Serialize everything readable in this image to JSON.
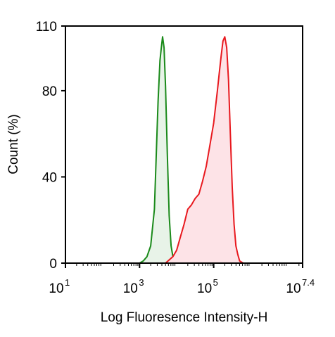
{
  "chart_data": {
    "type": "area",
    "xlabel": "Log Fluoresence Intensity-H",
    "ylabel": "Count  (%)",
    "x_scale": "log10",
    "xlim": [
      1,
      7.4
    ],
    "ylim": [
      0,
      110
    ],
    "x_ticks": [
      {
        "base": "10",
        "exp": "1",
        "value": 1
      },
      {
        "base": "10",
        "exp": "3",
        "value": 3
      },
      {
        "base": "10",
        "exp": "5",
        "value": 5
      },
      {
        "base": "10",
        "exp": "7.4",
        "value": 7.4
      }
    ],
    "y_ticks": [
      {
        "label": "0",
        "value": 0
      },
      {
        "label": "40",
        "value": 40
      },
      {
        "label": "80",
        "value": 80
      },
      {
        "label": "110",
        "value": 110
      }
    ],
    "grid": false,
    "series": [
      {
        "color": "#1a8a1a",
        "fill": "#e8f3e8",
        "x": [
          3.0,
          3.1,
          3.2,
          3.3,
          3.4,
          3.45,
          3.5,
          3.55,
          3.58,
          3.62,
          3.66,
          3.7,
          3.75,
          3.8,
          3.85,
          3.9,
          3.95,
          4.0
        ],
        "y": [
          0,
          1,
          3,
          8,
          25,
          50,
          75,
          94,
          99,
          105,
          100,
          82,
          50,
          22,
          8,
          3,
          1,
          0
        ]
      },
      {
        "color": "#e8191f",
        "fill": "#fde3e7",
        "x": [
          3.7,
          3.9,
          4.0,
          4.1,
          4.2,
          4.3,
          4.4,
          4.5,
          4.6,
          4.7,
          4.8,
          4.9,
          5.0,
          5.1,
          5.15,
          5.2,
          5.25,
          5.3,
          5.35,
          5.4,
          5.45,
          5.5,
          5.55,
          5.6,
          5.65,
          5.7,
          5.75,
          5.8,
          6.0
        ],
        "y": [
          0,
          3,
          6,
          12,
          18,
          25,
          27,
          30,
          32,
          38,
          45,
          55,
          65,
          80,
          88,
          96,
          103,
          105,
          100,
          85,
          60,
          35,
          18,
          8,
          4,
          1,
          0.5,
          0,
          0
        ]
      }
    ]
  }
}
